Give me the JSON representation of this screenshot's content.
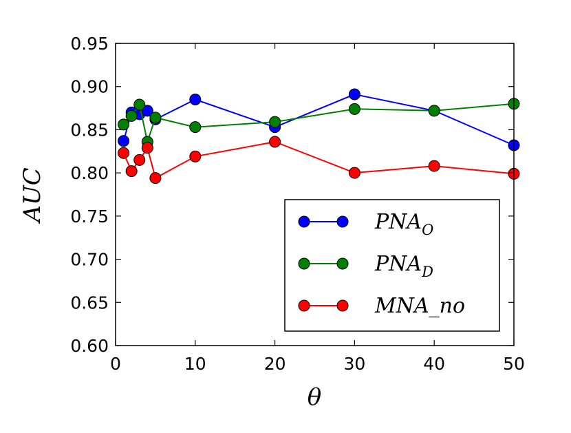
{
  "chart_data": {
    "type": "line",
    "title": "",
    "xlabel": "θ",
    "ylabel": "AUC",
    "xlim": [
      0,
      50
    ],
    "ylim": [
      0.6,
      0.95
    ],
    "x_ticks": [
      0,
      10,
      20,
      30,
      40,
      50
    ],
    "x_tick_labels": [
      "0",
      "10",
      "20",
      "30",
      "40",
      "50"
    ],
    "y_ticks": [
      0.6,
      0.65,
      0.7,
      0.75,
      0.8,
      0.85,
      0.9,
      0.95
    ],
    "y_tick_labels": [
      "0.60",
      "0.65",
      "0.70",
      "0.75",
      "0.80",
      "0.85",
      "0.90",
      "0.95"
    ],
    "grid": false,
    "legend_position": "lower-right",
    "x": [
      1,
      2,
      3,
      4,
      5,
      10,
      20,
      30,
      40,
      50
    ],
    "series": [
      {
        "name": "PNA_O",
        "legend_main": "PNA",
        "legend_sub": "O",
        "color": "#0000ff",
        "values": [
          0.837,
          0.87,
          0.868,
          0.872,
          0.862,
          0.885,
          0.853,
          0.891,
          0.872,
          0.832
        ]
      },
      {
        "name": "PNA_D",
        "legend_main": "PNA",
        "legend_sub": "D",
        "color": "#007f00",
        "values": [
          0.856,
          0.866,
          0.879,
          0.836,
          0.864,
          0.853,
          0.859,
          0.874,
          0.872,
          0.88
        ]
      },
      {
        "name": "MNA_no",
        "legend_main": "MNA_no",
        "legend_sub": "",
        "color": "#ff0000",
        "values": [
          0.823,
          0.802,
          0.815,
          0.829,
          0.794,
          0.819,
          0.836,
          0.8,
          0.808,
          0.799
        ]
      }
    ]
  }
}
